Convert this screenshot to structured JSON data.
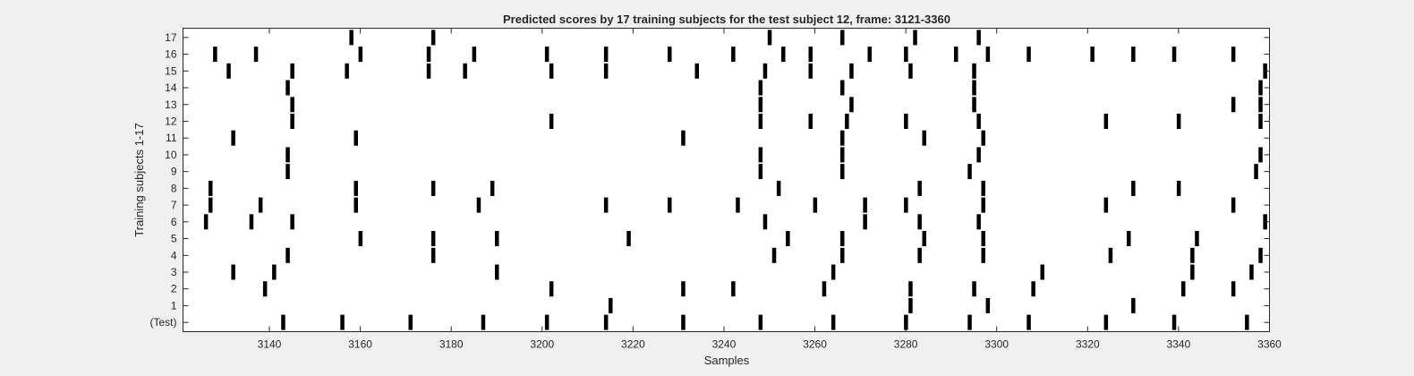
{
  "chart_data": {
    "type": "scatter",
    "title": "Predicted scores by 17 training subjects for the test subject 12, frame: 3121-3360",
    "xlabel": "Samples",
    "ylabel": "Training subjects 1-17",
    "xlim": [
      3121,
      3360
    ],
    "ylim": [
      0,
      17
    ],
    "x_ticks": [
      3140,
      3160,
      3180,
      3200,
      3220,
      3240,
      3260,
      3280,
      3300,
      3320,
      3340,
      3360
    ],
    "y_tick_labels": [
      "(Test)",
      "1",
      "2",
      "3",
      "4",
      "5",
      "6",
      "7",
      "8",
      "9",
      "10",
      "11",
      "12",
      "13",
      "14",
      "15",
      "16",
      "17"
    ],
    "grid": false,
    "colors": {
      "background": "#f0f0f0",
      "plot": "#ffffff",
      "marker": "#000000"
    },
    "rows": [
      {
        "label": "(Test)",
        "x": [
          3143,
          3156,
          3171,
          3187,
          3201,
          3214,
          3231,
          3248,
          3264,
          3280,
          3294,
          3307,
          3324,
          3339,
          3355
        ]
      },
      {
        "label": "1",
        "x": [
          3215,
          3281,
          3298,
          3330
        ]
      },
      {
        "label": "2",
        "x": [
          3139,
          3202,
          3231,
          3242,
          3262,
          3281,
          3295,
          3308,
          3341,
          3352
        ]
      },
      {
        "label": "3",
        "x": [
          3132,
          3141,
          3190,
          3264,
          3310,
          3343,
          3356
        ]
      },
      {
        "label": "4",
        "x": [
          3144,
          3176,
          3251,
          3266,
          3283,
          3297,
          3325,
          3343,
          3358
        ]
      },
      {
        "label": "5",
        "x": [
          3160,
          3176,
          3190,
          3219,
          3254,
          3266,
          3284,
          3297,
          3329,
          3344
        ]
      },
      {
        "label": "6",
        "x": [
          3126,
          3136,
          3145,
          3249,
          3271,
          3283,
          3296,
          3359
        ]
      },
      {
        "label": "7",
        "x": [
          3127,
          3138,
          3159,
          3186,
          3214,
          3228,
          3243,
          3260,
          3271,
          3280,
          3297,
          3324,
          3352
        ]
      },
      {
        "label": "8",
        "x": [
          3127,
          3159,
          3176,
          3189,
          3252,
          3283,
          3297,
          3330,
          3340
        ]
      },
      {
        "label": "9",
        "x": [
          3144,
          3248,
          3266,
          3294,
          3357
        ]
      },
      {
        "label": "10",
        "x": [
          3144,
          3248,
          3266,
          3296,
          3358
        ]
      },
      {
        "label": "11",
        "x": [
          3132,
          3159,
          3231,
          3266,
          3284,
          3297
        ]
      },
      {
        "label": "12",
        "x": [
          3145,
          3202,
          3248,
          3259,
          3267,
          3280,
          3296,
          3324,
          3340,
          3358
        ]
      },
      {
        "label": "13",
        "x": [
          3145,
          3248,
          3268,
          3295,
          3352,
          3358
        ]
      },
      {
        "label": "14",
        "x": [
          3144,
          3248,
          3266,
          3295,
          3358
        ]
      },
      {
        "label": "15",
        "x": [
          3131,
          3145,
          3157,
          3175,
          3183,
          3202,
          3214,
          3234,
          3249,
          3259,
          3268,
          3281,
          3295,
          3359
        ]
      },
      {
        "label": "16",
        "x": [
          3128,
          3137,
          3160,
          3175,
          3185,
          3201,
          3214,
          3228,
          3242,
          3253,
          3259,
          3272,
          3280,
          3291,
          3298,
          3307,
          3321,
          3330,
          3339,
          3352
        ]
      },
      {
        "label": "17",
        "x": [
          3158,
          3176,
          3250,
          3266,
          3282,
          3296
        ]
      }
    ]
  }
}
